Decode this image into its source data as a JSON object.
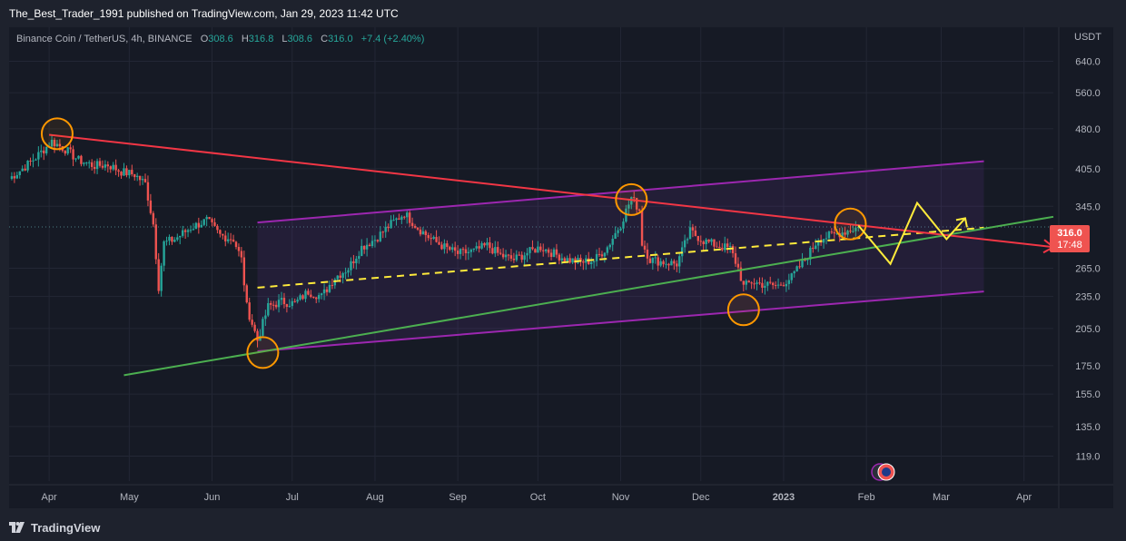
{
  "header": {
    "publish_line": "The_Best_Trader_1991 published on TradingView.com, Jan 29, 2023 11:42 UTC"
  },
  "legend": {
    "symbol": "Binance Coin / TetherUS, 4h, BINANCE",
    "o_label": "O",
    "o": "308.6",
    "h_label": "H",
    "h": "316.8",
    "l_label": "L",
    "l": "308.6",
    "c_label": "C",
    "c": "316.0",
    "change": "+7.4 (+2.40%)"
  },
  "price_badge": {
    "price": "316.0",
    "countdown": "17:48"
  },
  "footer": {
    "brand": "TradingView"
  },
  "chart_data": {
    "type": "line",
    "title": "",
    "currency": "USDT",
    "y_scale": "log",
    "y_ticks": [
      640.0,
      560.0,
      480.0,
      405.0,
      345.0,
      265.0,
      235.0,
      205.0,
      175.0,
      155.0,
      135.0,
      119.0
    ],
    "ylim": [
      107,
      740
    ],
    "x_ticks": [
      "Apr",
      "May",
      "Jun",
      "Jul",
      "Aug",
      "Sep",
      "Oct",
      "Nov",
      "Dec",
      "2023",
      "Feb",
      "Mar",
      "Apr"
    ],
    "x_tick_dates": [
      "2022-04-01",
      "2022-05-01",
      "2022-06-01",
      "2022-07-01",
      "2022-08-01",
      "2022-09-01",
      "2022-10-01",
      "2022-11-01",
      "2022-12-01",
      "2023-01-01",
      "2023-02-01",
      "2023-03-01",
      "2023-04-01"
    ],
    "xlim": [
      "2022-03-17",
      "2023-04-12"
    ],
    "series": [
      {
        "values": [
          [
            "2022-03-17",
            388
          ],
          [
            "2022-03-22",
            405
          ],
          [
            "2022-03-27",
            425
          ],
          [
            "2022-04-02",
            455
          ],
          [
            "2022-04-07",
            440
          ],
          [
            "2022-04-12",
            420
          ],
          [
            "2022-04-18",
            410
          ],
          [
            "2022-04-23",
            412
          ],
          [
            "2022-04-28",
            400
          ],
          [
            "2022-05-03",
            395
          ],
          [
            "2022-05-07",
            380
          ],
          [
            "2022-05-10",
            320
          ],
          [
            "2022-05-12",
            245
          ],
          [
            "2022-05-14",
            295
          ],
          [
            "2022-05-18",
            300
          ],
          [
            "2022-05-24",
            315
          ],
          [
            "2022-05-30",
            325
          ],
          [
            "2022-06-04",
            305
          ],
          [
            "2022-06-09",
            300
          ],
          [
            "2022-06-12",
            275
          ],
          [
            "2022-06-14",
            225
          ],
          [
            "2022-06-18",
            195
          ],
          [
            "2022-06-22",
            225
          ],
          [
            "2022-06-27",
            230
          ],
          [
            "2022-07-02",
            228
          ],
          [
            "2022-07-07",
            240
          ],
          [
            "2022-07-12",
            235
          ],
          [
            "2022-07-17",
            255
          ],
          [
            "2022-07-22",
            265
          ],
          [
            "2022-07-27",
            290
          ],
          [
            "2022-08-01",
            300
          ],
          [
            "2022-08-07",
            320
          ],
          [
            "2022-08-12",
            335
          ],
          [
            "2022-08-17",
            315
          ],
          [
            "2022-08-22",
            300
          ],
          [
            "2022-08-27",
            290
          ],
          [
            "2022-09-01",
            282
          ],
          [
            "2022-09-07",
            285
          ],
          [
            "2022-09-12",
            292
          ],
          [
            "2022-09-17",
            280
          ],
          [
            "2022-09-22",
            275
          ],
          [
            "2022-09-27",
            283
          ],
          [
            "2022-10-02",
            290
          ],
          [
            "2022-10-07",
            282
          ],
          [
            "2022-10-12",
            275
          ],
          [
            "2022-10-17",
            272
          ],
          [
            "2022-10-22",
            274
          ],
          [
            "2022-10-27",
            290
          ],
          [
            "2022-11-01",
            320
          ],
          [
            "2022-11-05",
            358
          ],
          [
            "2022-11-08",
            340
          ],
          [
            "2022-11-09",
            295
          ],
          [
            "2022-11-12",
            275
          ],
          [
            "2022-11-17",
            272
          ],
          [
            "2022-11-22",
            270
          ],
          [
            "2022-11-27",
            310
          ],
          [
            "2022-12-02",
            298
          ],
          [
            "2022-12-07",
            292
          ],
          [
            "2022-12-12",
            288
          ],
          [
            "2022-12-15",
            265
          ],
          [
            "2022-12-17",
            245
          ],
          [
            "2022-12-20",
            250
          ],
          [
            "2022-12-25",
            247
          ],
          [
            "2022-12-30",
            246
          ],
          [
            "2023-01-04",
            255
          ],
          [
            "2023-01-09",
            275
          ],
          [
            "2023-01-14",
            300
          ],
          [
            "2023-01-19",
            305
          ],
          [
            "2023-01-24",
            310
          ],
          [
            "2023-01-29",
            316
          ]
        ]
      }
    ],
    "annotations": {
      "resistance_line": [
        [
          "2022-04-01",
          468
        ],
        [
          "2023-04-12",
          290
        ]
      ],
      "support_line": [
        [
          "2022-04-29",
          168
        ],
        [
          "2023-04-12",
          330
        ]
      ],
      "channel_upper": [
        [
          "2022-06-18",
          322
        ],
        [
          "2023-03-17",
          418
        ]
      ],
      "channel_lower": [
        [
          "2022-06-18",
          186
        ],
        [
          "2023-03-17",
          240
        ]
      ],
      "midline_dashed": [
        [
          "2022-06-18",
          244
        ],
        [
          "2023-03-17",
          315
        ]
      ],
      "circles": [
        [
          "2022-04-04",
          470
        ],
        [
          "2022-06-20",
          185
        ],
        [
          "2022-11-05",
          355
        ],
        [
          "2022-12-17",
          222
        ],
        [
          "2023-01-26",
          320
        ]
      ],
      "projection_path": [
        [
          "2023-01-29",
          318
        ],
        [
          "2023-02-10",
          270
        ],
        [
          "2023-02-20",
          350
        ],
        [
          "2023-03-03",
          300
        ],
        [
          "2023-03-10",
          328
        ]
      ],
      "colors": {
        "resistance": "#f23645",
        "support": "#4caf50",
        "channel": "#9c27b0",
        "midline": "#ffeb3b",
        "circles": "#ff9800",
        "projection": "#ffeb3b",
        "up_candle": "#26a69a",
        "down_candle": "#ef5350"
      }
    },
    "grid": true
  }
}
